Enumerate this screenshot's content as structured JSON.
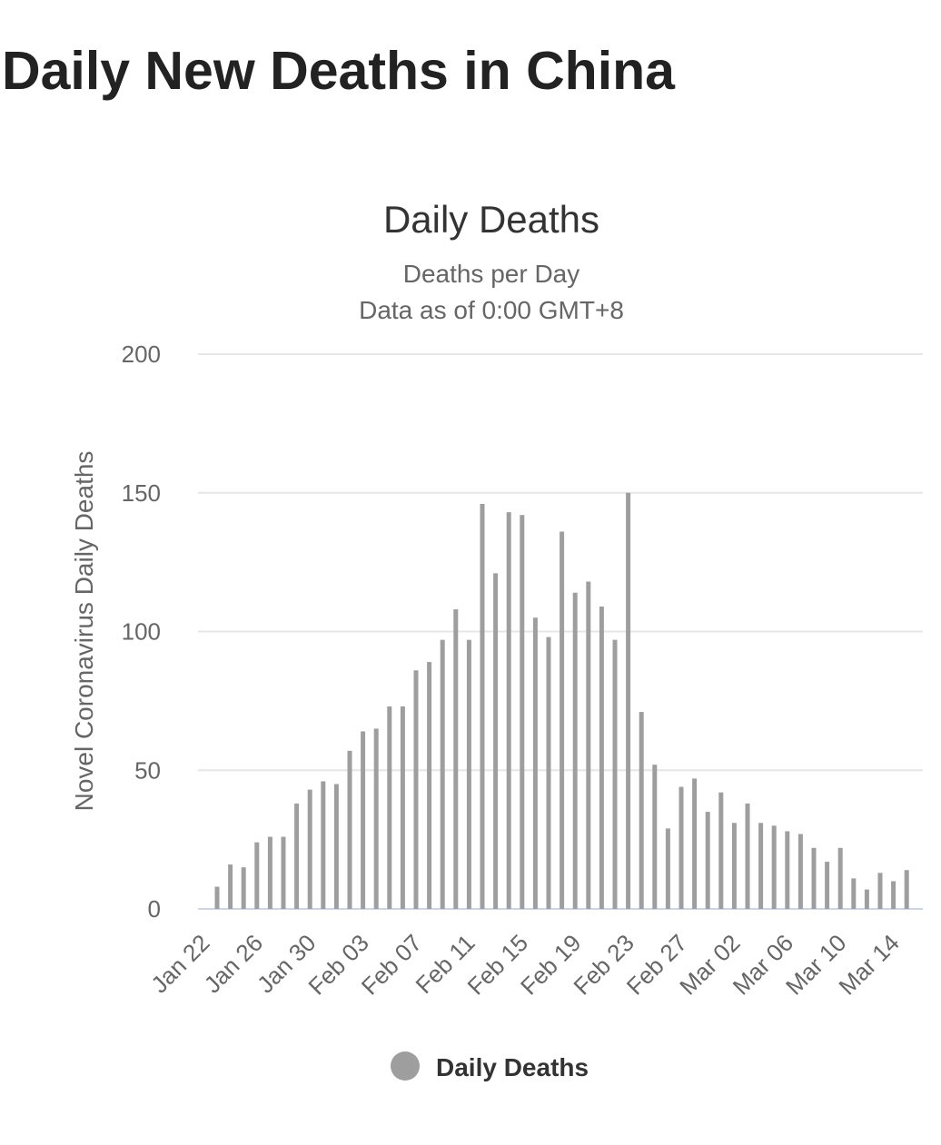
{
  "page": {
    "title": "Daily New Deaths in China"
  },
  "chart_data": {
    "type": "bar",
    "title": "Daily Deaths",
    "subtitle_lines": [
      "Deaths per Day",
      "Data as of 0:00 GMT+8"
    ],
    "ylabel": "Novel Coronavirus Daily Deaths",
    "xlabel": "",
    "ylim": [
      0,
      200
    ],
    "yticks": [
      0,
      50,
      100,
      150,
      200
    ],
    "grid": true,
    "legend_position": "bottom-center",
    "categories": [
      "Jan 22",
      "Jan 23",
      "Jan 24",
      "Jan 25",
      "Jan 26",
      "Jan 27",
      "Jan 28",
      "Jan 29",
      "Jan 30",
      "Jan 31",
      "Feb 01",
      "Feb 02",
      "Feb 03",
      "Feb 04",
      "Feb 05",
      "Feb 06",
      "Feb 07",
      "Feb 08",
      "Feb 09",
      "Feb 10",
      "Feb 11",
      "Feb 12",
      "Feb 13",
      "Feb 14",
      "Feb 15",
      "Feb 16",
      "Feb 17",
      "Feb 18",
      "Feb 19",
      "Feb 20",
      "Feb 21",
      "Feb 22",
      "Feb 23",
      "Feb 24",
      "Feb 25",
      "Feb 26",
      "Feb 27",
      "Feb 28",
      "Feb 29",
      "Mar 01",
      "Mar 02",
      "Mar 03",
      "Mar 04",
      "Mar 05",
      "Mar 06",
      "Mar 07",
      "Mar 08",
      "Mar 09",
      "Mar 10",
      "Mar 11",
      "Mar 12",
      "Mar 13",
      "Mar 14",
      "Mar 15"
    ],
    "tick_labels": [
      "Jan 22",
      "Jan 26",
      "Jan 30",
      "Feb 03",
      "Feb 07",
      "Feb 11",
      "Feb 15",
      "Feb 19",
      "Feb 23",
      "Feb 27",
      "Mar 02",
      "Mar 06",
      "Mar 10",
      "Mar 14"
    ],
    "series": [
      {
        "name": "Daily Deaths",
        "color": "#9e9e9e",
        "values": [
          0,
          8,
          16,
          15,
          24,
          26,
          26,
          38,
          43,
          46,
          45,
          57,
          64,
          65,
          73,
          73,
          86,
          89,
          97,
          108,
          97,
          146,
          121,
          143,
          142,
          105,
          98,
          136,
          114,
          118,
          109,
          97,
          150,
          71,
          52,
          29,
          44,
          47,
          35,
          42,
          31,
          38,
          31,
          30,
          28,
          27,
          22,
          17,
          22,
          11,
          7,
          13,
          10,
          14
        ]
      }
    ],
    "colors": {
      "bar": "#9e9e9e",
      "grid": "#e6e6e6",
      "axis_line": "#ccd6eb",
      "text": "#666666",
      "title": "#333333"
    }
  }
}
